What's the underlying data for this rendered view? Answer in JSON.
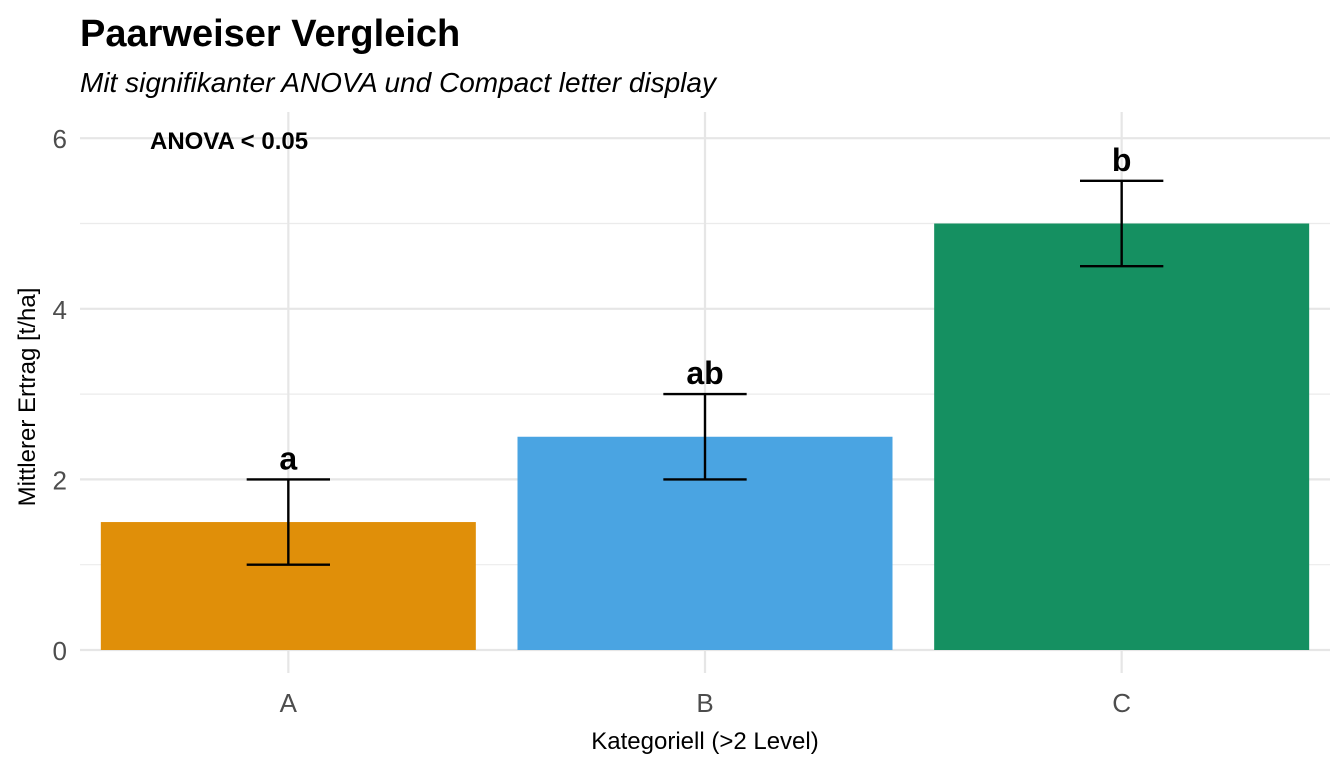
{
  "chart_data": {
    "type": "bar",
    "title": "Paarweiser Vergleich",
    "subtitle": "Mit signifikanter ANOVA und Compact letter display",
    "xlabel": "Kategoriell (>2 Level)",
    "ylabel": "Mittlerer Ertrag [t/ha]",
    "categories": [
      "A",
      "B",
      "C"
    ],
    "values": [
      1.5,
      2.5,
      5.0
    ],
    "error_low": [
      1.0,
      2.0,
      4.5
    ],
    "error_high": [
      2.0,
      3.0,
      5.5
    ],
    "letters": [
      "a",
      "ab",
      "b"
    ],
    "colors": [
      "#E08F09",
      "#4AA4E2",
      "#159061"
    ],
    "ylim": [
      0,
      6.3
    ],
    "yticks": [
      0,
      2,
      4,
      6
    ],
    "grid": true,
    "legend": "none",
    "annotation": "ANOVA < 0.05"
  }
}
